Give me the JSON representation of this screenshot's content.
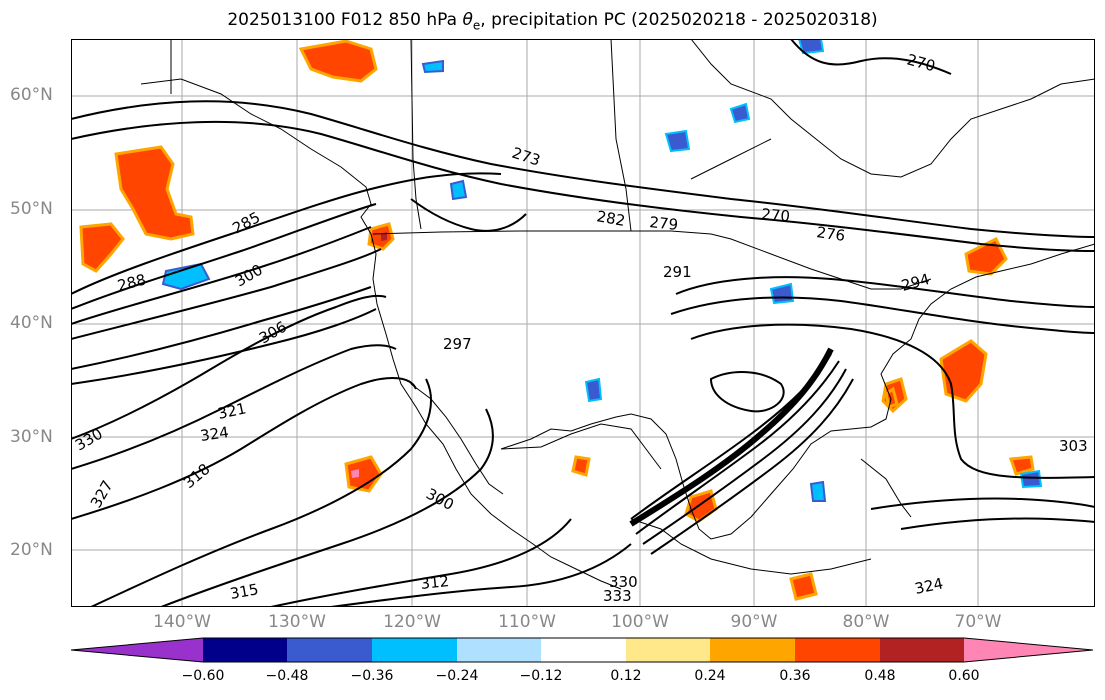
{
  "title_prefix": "2025013100 F012 850 hPa ",
  "title_theta": "θ",
  "title_sub": "e",
  "title_suffix": ", precipitation PC (2025020218 - 2025020318)",
  "lat_labels": [
    {
      "label": "60°N"
    },
    {
      "label": "50°N"
    },
    {
      "label": "40°N"
    },
    {
      "label": "30°N"
    },
    {
      "label": "20°N"
    }
  ],
  "lon_labels": [
    {
      "label": "140°W"
    },
    {
      "label": "130°W"
    },
    {
      "label": "120°W"
    },
    {
      "label": "110°W"
    },
    {
      "label": "100°W"
    },
    {
      "label": "90°W"
    },
    {
      "label": "80°W"
    },
    {
      "label": "70°W"
    }
  ],
  "colorbar": {
    "ticks": [
      "−0.60",
      "−0.48",
      "−0.36",
      "−0.24",
      "−0.12",
      "0.12",
      "0.24",
      "0.36",
      "0.48",
      "0.60"
    ],
    "colors": [
      "#9932cc",
      "#00008b",
      "#3a5bd0",
      "#00bfff",
      "#b0e0ff",
      "#ffffff",
      "#ffe88a",
      "#ffa500",
      "#ff4500",
      "#b22222",
      "#ff85b5"
    ]
  },
  "contour_labels": [
    {
      "text": "273"
    },
    {
      "text": "282"
    },
    {
      "text": "279"
    },
    {
      "text": "270"
    },
    {
      "text": "276"
    },
    {
      "text": "291"
    },
    {
      "text": "285"
    },
    {
      "text": "288"
    },
    {
      "text": "300"
    },
    {
      "text": "306"
    },
    {
      "text": "297"
    },
    {
      "text": "321"
    },
    {
      "text": "324"
    },
    {
      "text": "330"
    },
    {
      "text": "327"
    },
    {
      "text": "315"
    },
    {
      "text": "312"
    },
    {
      "text": "300"
    },
    {
      "text": "303"
    },
    {
      "text": "270"
    },
    {
      "text": "294"
    },
    {
      "text": "333"
    },
    {
      "text": "330"
    },
    {
      "text": "324"
    },
    {
      "text": "318"
    }
  ]
}
